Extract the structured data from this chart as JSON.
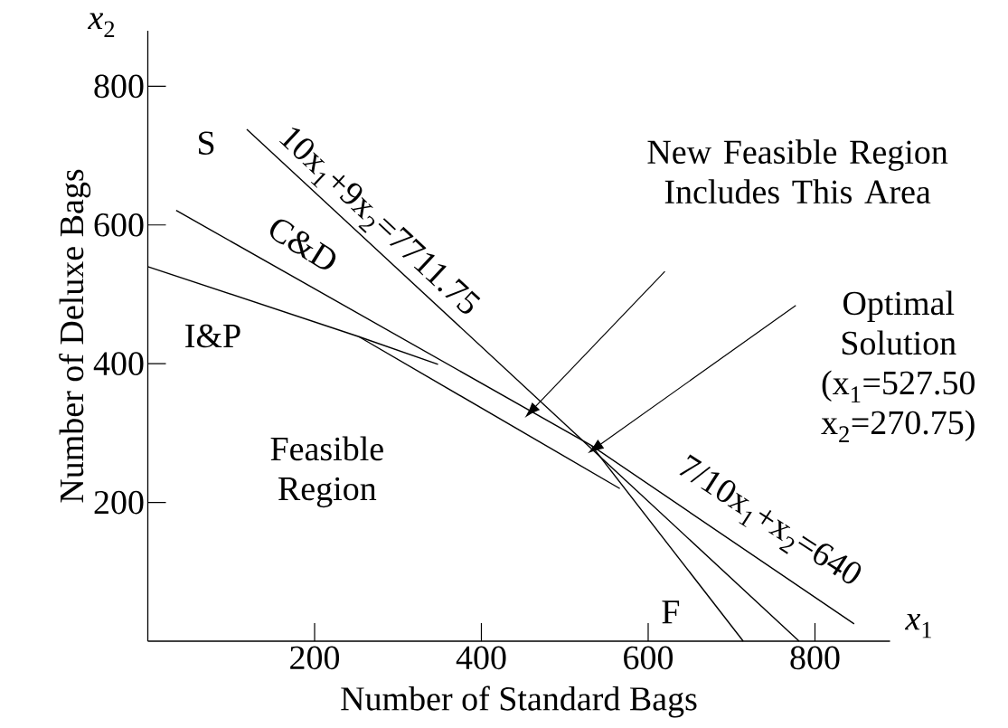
{
  "chart_data": {
    "type": "line",
    "xlabel": "Number of Standard Bags",
    "ylabel": "Number of Deluxe Bags",
    "xlim": [
      0,
      890
    ],
    "ylim": [
      0,
      880
    ],
    "xticks": [
      200,
      400,
      600,
      800
    ],
    "yticks": [
      200,
      400,
      600,
      800
    ],
    "marker": "none",
    "line_style": "solid",
    "series": [
      {
        "color": "#000000",
        "x": [
          118.7,
          781
        ],
        "values": [
          738,
          0
        ]
      },
      {
        "color": "#000000",
        "x": [
          34,
          532,
          847
        ],
        "values": [
          621,
          282,
          25
        ]
      },
      {
        "color": "#000000",
        "x": [
          532,
          714
        ],
        "values": [
          282,
          0
        ]
      },
      {
        "color": "#000000",
        "x": [
          0,
          253,
          348
        ],
        "values": [
          540,
          439,
          399
        ]
      },
      {
        "color": "#000000",
        "x": [
          253,
          566
        ],
        "values": [
          439,
          220
        ]
      }
    ],
    "annotations": [
      "*x*$_{1}$",
      "*x*$_{2}$",
      "S",
      "C&D",
      "I&P",
      "F",
      "10x$_{1}$+9x$_{2}$=7711.75",
      "7/10x$_{1}$+x$_{2}$=640",
      "Feasible Region",
      "New Feasible Region Includes This Area",
      "Optimal Solution (x$_{1}$=527.50 x$_{2}$=270.75)"
    ]
  }
}
